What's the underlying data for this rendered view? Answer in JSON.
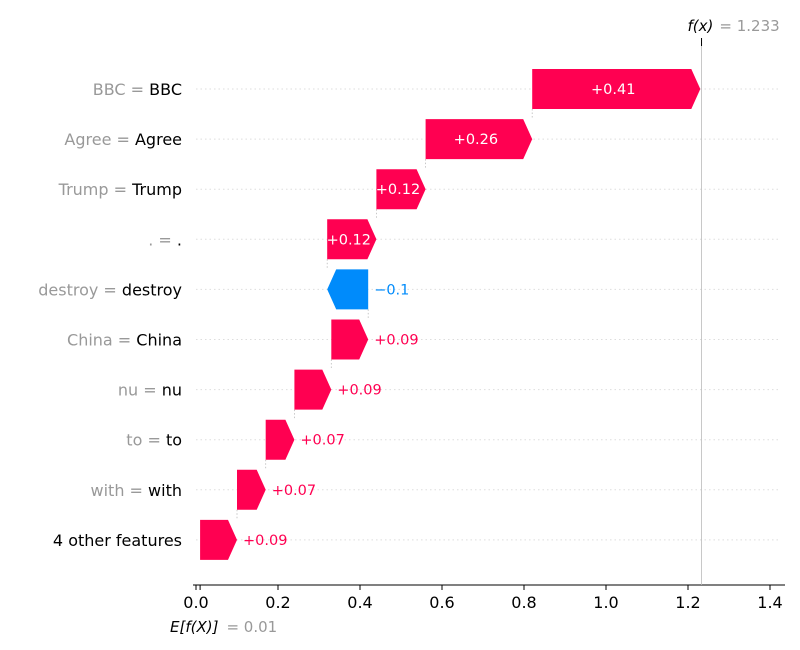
{
  "chart_data": {
    "type": "waterfall",
    "features": [
      {
        "name": "BBC ",
        "value_text": "BBC",
        "contribution": 0.41,
        "label": "+0.41"
      },
      {
        "name": "Agree ",
        "value_text": "Agree",
        "contribution": 0.26,
        "label": "+0.26"
      },
      {
        "name": "Trump ",
        "value_text": "Trump",
        "contribution": 0.12,
        "label": "+0.12"
      },
      {
        "name": ". ",
        "value_text": ".",
        "contribution": 0.12,
        "label": "+0.12"
      },
      {
        "name": "destroy ",
        "value_text": "destroy",
        "contribution": -0.1,
        "label": "−0.1"
      },
      {
        "name": "China ",
        "value_text": "China",
        "contribution": 0.09,
        "label": "+0.09"
      },
      {
        "name": "nu",
        "value_text": "nu",
        "contribution": 0.09,
        "label": "+0.09"
      },
      {
        "name": "to ",
        "value_text": "to",
        "contribution": 0.07,
        "label": "+0.07"
      },
      {
        "name": "with ",
        "value_text": "with",
        "contribution": 0.07,
        "label": "+0.07"
      },
      {
        "name": "",
        "value_text": "4 other features",
        "contribution": 0.09,
        "label": "+0.09",
        "is_other": true
      }
    ],
    "base_value": 0.01,
    "output_value": 1.233,
    "base_label_prefix": "E[f(X)]",
    "base_label_value": "= 0.01",
    "output_label_prefix": "f(x)",
    "output_label_value": "= 1.233",
    "xlim": [
      0.0,
      1.4
    ],
    "xticks": [
      0.0,
      0.2,
      0.4,
      0.6,
      0.8,
      1.0,
      1.2,
      1.4
    ],
    "xtick_labels": [
      "0.0",
      "0.2",
      "0.4",
      "0.6",
      "0.8",
      "1.0",
      "1.2",
      "1.4"
    ],
    "colors": {
      "positive": "#ff0051",
      "negative": "#008bfb",
      "muted_text": "#999999",
      "grid": "#cccccc"
    }
  }
}
